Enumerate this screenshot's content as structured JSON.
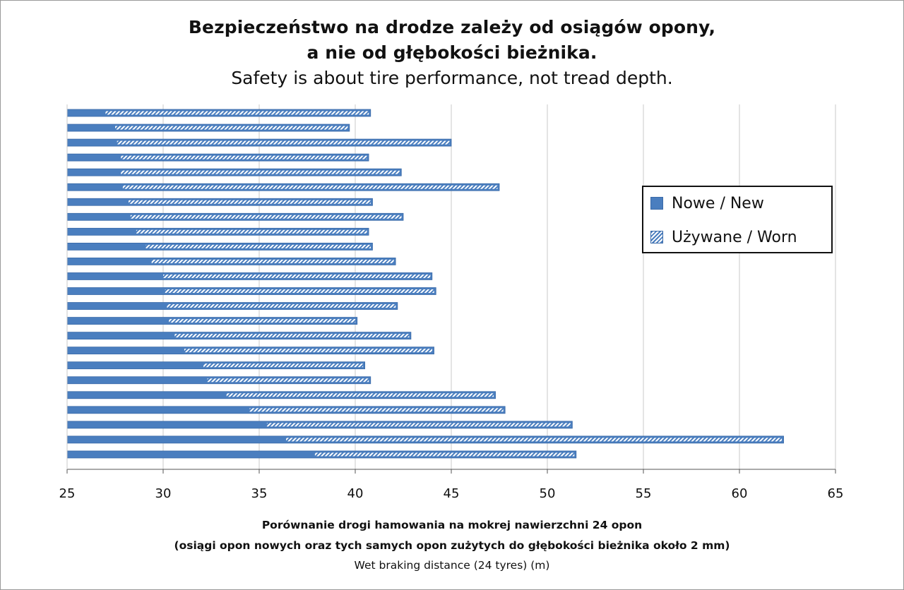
{
  "title_line1": "Bezpieczeństwo na drodze zależy od osiągów opony,",
  "title_line2": "a nie od głębokości bieżnika.",
  "subtitle": "Safety is about tire performance, not tread depth.",
  "xlabel_line1": "Porównanie drogi hamowania na mokrej nawierzchni 24 opon",
  "xlabel_line2": "(osiągi opon nowych oraz tych samych opon zużytych do głębokości bieżnika około 2 mm)",
  "xlabel_line3": "Wet braking distance (24 tyres) (m)",
  "legend": {
    "new_label": "Nowe / New",
    "worn_label": "Używane / Worn"
  },
  "colors": {
    "bar_fill": "#4a7ebf",
    "bar_edge": "#3a6aa8",
    "grid": "#c8c8c8",
    "axis": "#555555"
  },
  "chart_data": {
    "type": "bar",
    "orientation": "horizontal",
    "xlim": [
      25,
      65
    ],
    "xticks": [
      25,
      30,
      35,
      40,
      45,
      50,
      55,
      60,
      65
    ],
    "grid": "vertical",
    "legend_position": "right",
    "series": [
      {
        "name": "Nowe / New",
        "style": "solid",
        "values": [
          27.0,
          27.5,
          27.6,
          27.8,
          27.8,
          27.9,
          28.2,
          28.3,
          28.6,
          29.1,
          29.4,
          30.0,
          30.1,
          30.2,
          30.3,
          30.6,
          31.1,
          32.1,
          32.3,
          33.3,
          34.5,
          35.4,
          36.4,
          37.9
        ]
      },
      {
        "name": "Używane / Worn",
        "style": "hatched",
        "values": [
          40.8,
          39.7,
          45.0,
          40.7,
          42.4,
          47.5,
          40.9,
          42.5,
          40.7,
          40.9,
          42.1,
          44.0,
          44.2,
          42.2,
          40.1,
          42.9,
          44.1,
          40.5,
          40.8,
          47.3,
          47.8,
          51.3,
          62.3,
          51.5
        ]
      }
    ]
  }
}
